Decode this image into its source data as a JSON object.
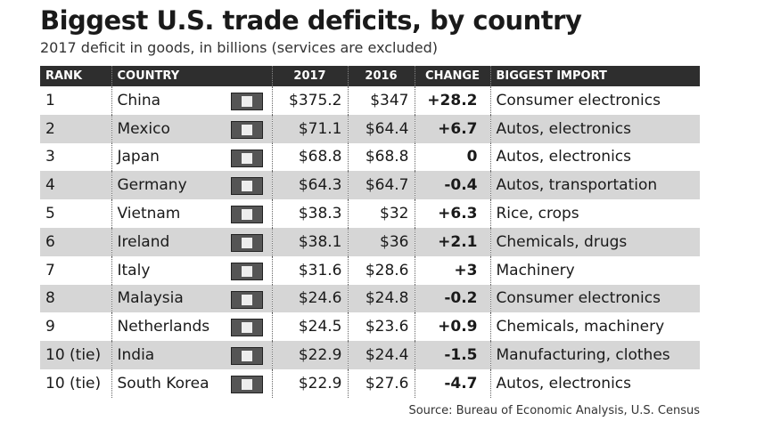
{
  "header": {
    "title": "Biggest U.S. trade deficits, by country",
    "subtitle": "2017 deficit in goods, in billions (services are excluded)"
  },
  "table": {
    "columns": [
      "RANK",
      "COUNTRY",
      "2017",
      "2016",
      "CHANGE",
      "BIGGEST IMPORT"
    ],
    "rows": [
      [
        "1",
        "China",
        "$375.2",
        "$347",
        "+28.2",
        "Consumer electronics"
      ],
      [
        "2",
        "Mexico",
        "$71.1",
        "$64.4",
        "+6.7",
        "Autos, electronics"
      ],
      [
        "3",
        "Japan",
        "$68.8",
        "$68.8",
        "0",
        "Autos, electronics"
      ],
      [
        "4",
        "Germany",
        "$64.3",
        "$64.7",
        "-0.4",
        "Autos, transportation"
      ],
      [
        "5",
        "Vietnam",
        "$38.3",
        "$32",
        "+6.3",
        "Rice, crops"
      ],
      [
        "6",
        "Ireland",
        "$38.1",
        "$36",
        "+2.1",
        "Chemicals, drugs"
      ],
      [
        "7",
        "Italy",
        "$31.6",
        "$28.6",
        "+3",
        "Machinery"
      ],
      [
        "8",
        "Malaysia",
        "$24.6",
        "$24.8",
        "-0.2",
        "Consumer electronics"
      ],
      [
        "9",
        "Netherlands",
        "$24.5",
        "$23.6",
        "+0.9",
        "Chemicals, machinery"
      ],
      [
        "10 (tie)",
        "India",
        "$22.9",
        "$24.4",
        "-1.5",
        "Manufacturing, clothes"
      ],
      [
        "10 (tie)",
        "South Korea",
        "$22.9",
        "$27.6",
        "-4.7",
        "Autos, electronics"
      ]
    ]
  },
  "footer": {
    "source": "Source: Bureau of Economic Analysis, U.S. Census"
  }
}
